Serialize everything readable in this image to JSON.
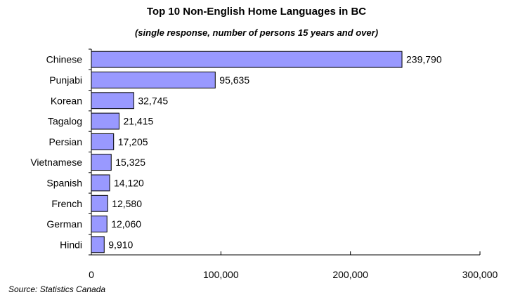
{
  "chart_data": {
    "type": "bar",
    "orientation": "horizontal",
    "title": "Top 10 Non-English Home Languages in BC",
    "subtitle": "(single response, number of persons 15 years and over)",
    "categories": [
      "Chinese",
      "Punjabi",
      "Korean",
      "Tagalog",
      "Persian",
      "Vietnamese",
      "Spanish",
      "French",
      "German",
      "Hindi"
    ],
    "values": [
      239790,
      95635,
      32745,
      21415,
      17205,
      15325,
      14120,
      12580,
      12060,
      9910
    ],
    "value_labels": [
      "239,790",
      "95,635",
      "32,745",
      "21,415",
      "17,205",
      "15,325",
      "14,120",
      "12,580",
      "12,060",
      "9,910"
    ],
    "xlim": [
      0,
      300000
    ],
    "xticks": [
      0,
      100000,
      200000,
      300000
    ],
    "xtick_labels": [
      "0",
      "100,000",
      "200,000",
      "300,000"
    ],
    "xlabel": "",
    "ylabel": "",
    "grid": false,
    "legend": "none",
    "bar_color": "#9999ff",
    "bar_edge_color": "#000000",
    "source": "Source: Statistics Canada"
  }
}
